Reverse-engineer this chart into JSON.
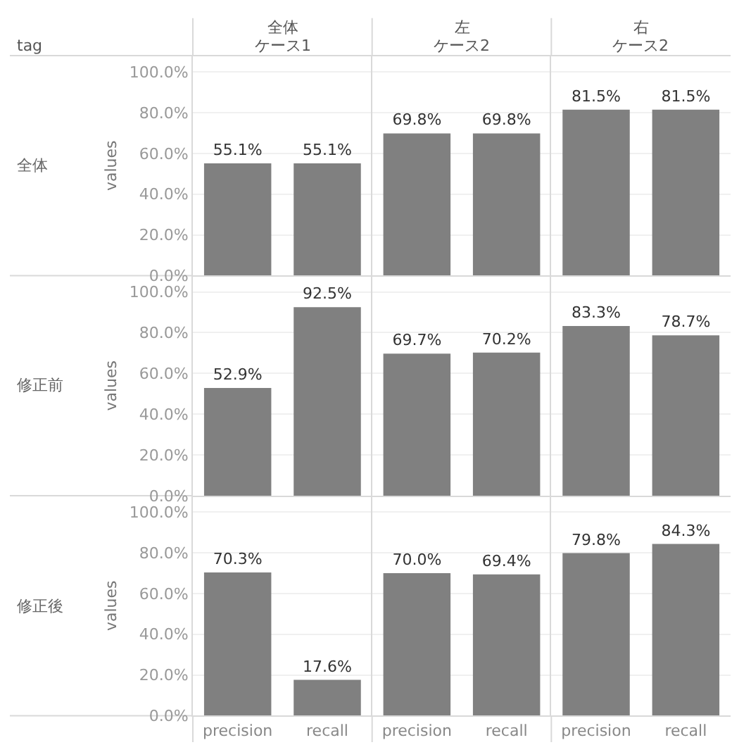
{
  "chart_data": [
    {
      "type": "bar",
      "title": "全体",
      "subtitle": "ケース1",
      "ylabel": "values",
      "annotations": [
        "tag",
        "全体"
      ],
      "categories": [
        null,
        null
      ],
      "values": [
        55.1,
        55.1
      ],
      "value_labels": [
        "55.1%",
        "55.1%"
      ],
      "color": "#808080",
      "ylim": [
        0,
        108
      ],
      "yticks": [
        {
          "value": 0,
          "label": "0.0%"
        },
        {
          "value": 20,
          "label": "20.0%"
        },
        {
          "value": 40,
          "label": "40.0%"
        },
        {
          "value": 60,
          "label": "60.0%"
        },
        {
          "value": 80,
          "label": "80.0%"
        },
        {
          "value": 100,
          "label": "100.0%"
        }
      ],
      "grid": "y",
      "tick_labels": "y"
    },
    {
      "type": "bar",
      "title": "左",
      "subtitle": "ケース2",
      "categories": [
        null,
        null
      ],
      "values": [
        69.8,
        69.8
      ],
      "value_labels": [
        "69.8%",
        "69.8%"
      ],
      "color": "#808080",
      "ylim": [
        0,
        108
      ],
      "yticks": [
        {
          "value": 0,
          "label": null
        },
        {
          "value": 20,
          "label": null
        },
        {
          "value": 40,
          "label": null
        },
        {
          "value": 60,
          "label": null
        },
        {
          "value": 80,
          "label": null
        },
        {
          "value": 100,
          "label": null
        }
      ],
      "grid": "y"
    },
    {
      "type": "bar",
      "title": "右",
      "subtitle": "ケース2",
      "categories": [
        null,
        null
      ],
      "values": [
        81.5,
        81.5
      ],
      "value_labels": [
        "81.5%",
        "81.5%"
      ],
      "color": "#808080",
      "ylim": [
        0,
        108
      ],
      "yticks": [
        {
          "value": 0,
          "label": null
        },
        {
          "value": 20,
          "label": null
        },
        {
          "value": 40,
          "label": null
        },
        {
          "value": 60,
          "label": null
        },
        {
          "value": 80,
          "label": null
        },
        {
          "value": 100,
          "label": null
        }
      ],
      "grid": "y"
    },
    {
      "type": "bar",
      "ylabel": "values",
      "annotations": [
        "修正前"
      ],
      "categories": [
        null,
        null
      ],
      "values": [
        52.9,
        92.5
      ],
      "value_labels": [
        "52.9%",
        "92.5%"
      ],
      "color": "#808080",
      "ylim": [
        0,
        108
      ],
      "yticks": [
        {
          "value": 0,
          "label": "0.0%"
        },
        {
          "value": 20,
          "label": "20.0%"
        },
        {
          "value": 40,
          "label": "40.0%"
        },
        {
          "value": 60,
          "label": "60.0%"
        },
        {
          "value": 80,
          "label": "80.0%"
        },
        {
          "value": 100,
          "label": "100.0%"
        }
      ],
      "grid": "y",
      "tick_labels": "y"
    },
    {
      "type": "bar",
      "categories": [
        null,
        null
      ],
      "values": [
        69.7,
        70.2
      ],
      "value_labels": [
        "69.7%",
        "70.2%"
      ],
      "color": "#808080",
      "ylim": [
        0,
        108
      ],
      "yticks": [
        {
          "value": 0,
          "label": null
        },
        {
          "value": 20,
          "label": null
        },
        {
          "value": 40,
          "label": null
        },
        {
          "value": 60,
          "label": null
        },
        {
          "value": 80,
          "label": null
        },
        {
          "value": 100,
          "label": null
        }
      ],
      "grid": "y"
    },
    {
      "type": "bar",
      "categories": [
        null,
        null
      ],
      "values": [
        83.3,
        78.7
      ],
      "value_labels": [
        "83.3%",
        "78.7%"
      ],
      "color": "#808080",
      "ylim": [
        0,
        108
      ],
      "yticks": [
        {
          "value": 0,
          "label": null
        },
        {
          "value": 20,
          "label": null
        },
        {
          "value": 40,
          "label": null
        },
        {
          "value": 60,
          "label": null
        },
        {
          "value": 80,
          "label": null
        },
        {
          "value": 100,
          "label": null
        }
      ],
      "grid": "y"
    },
    {
      "type": "bar",
      "ylabel": "values",
      "annotations": [
        "修正後"
      ],
      "categories": [
        "precision",
        "recall"
      ],
      "values": [
        70.3,
        17.6
      ],
      "value_labels": [
        "70.3%",
        "17.6%"
      ],
      "color": "#808080",
      "ylim": [
        0,
        108
      ],
      "yticks": [
        {
          "value": 0,
          "label": "0.0%"
        },
        {
          "value": 20,
          "label": "20.0%"
        },
        {
          "value": 40,
          "label": "40.0%"
        },
        {
          "value": 60,
          "label": "60.0%"
        },
        {
          "value": 80,
          "label": "80.0%"
        },
        {
          "value": 100,
          "label": "100.0%"
        }
      ],
      "grid": "y"
    },
    {
      "type": "bar",
      "categories": [
        "precision",
        "recall"
      ],
      "values": [
        70.0,
        69.4
      ],
      "value_labels": [
        "70.0%",
        "69.4%"
      ],
      "color": "#808080",
      "ylim": [
        0,
        108
      ],
      "yticks": [
        {
          "value": 0,
          "label": null
        },
        {
          "value": 20,
          "label": null
        },
        {
          "value": 40,
          "label": null
        },
        {
          "value": 60,
          "label": null
        },
        {
          "value": 80,
          "label": null
        },
        {
          "value": 100,
          "label": null
        }
      ],
      "grid": "y",
      "tick_labels": "x"
    },
    {
      "type": "bar",
      "categories": [
        "precision",
        "recall"
      ],
      "values": [
        79.8,
        84.3
      ],
      "value_labels": [
        "79.8%",
        "84.3%"
      ],
      "color": "#808080",
      "ylim": [
        0,
        108
      ],
      "yticks": [
        {
          "value": 0,
          "label": null
        },
        {
          "value": 20,
          "label": null
        },
        {
          "value": 40,
          "label": null
        },
        {
          "value": 60,
          "label": null
        },
        {
          "value": 80,
          "label": null
        },
        {
          "value": 100,
          "label": null
        }
      ],
      "grid": "y",
      "tick_labels": "x"
    }
  ]
}
